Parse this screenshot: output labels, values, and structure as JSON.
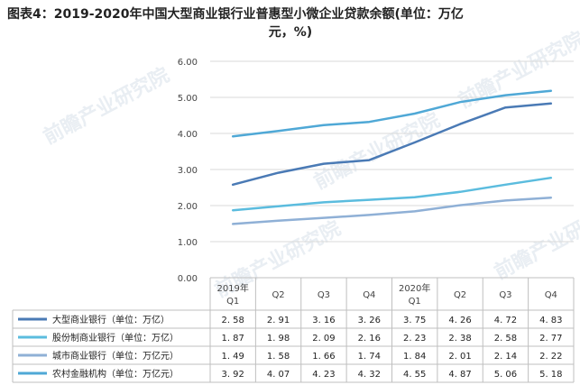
{
  "title": {
    "line1": "图表4：2019-2020年中国大型商业银行业普惠型小微企业贷款余额(单位：万亿",
    "line2": "元，%)"
  },
  "watermark": "前瞻产业研究院",
  "chart_data": {
    "type": "line",
    "title": "图表4：2019-2020年中国大型商业银行业普惠型小微企业贷款余额(单位：万亿元，%)",
    "categories": [
      [
        "2019年",
        "Q1"
      ],
      [
        "",
        "Q2"
      ],
      [
        "",
        "Q3"
      ],
      [
        "",
        "Q4"
      ],
      [
        "2020年",
        "Q1"
      ],
      [
        "",
        "Q2"
      ],
      [
        "",
        "Q3"
      ],
      [
        "",
        "Q4"
      ]
    ],
    "ylim": [
      0,
      6
    ],
    "yticks": [
      "0.00",
      "1.00",
      "2.00",
      "3.00",
      "4.00",
      "5.00",
      "6.00"
    ],
    "grid": true,
    "legend": "table-left",
    "series": [
      {
        "name": "大型商业银行（单位：万亿）",
        "color": "#4a7ab5",
        "values": [
          2.58,
          2.91,
          3.16,
          3.26,
          3.75,
          4.26,
          4.72,
          4.83
        ],
        "labels": [
          "2. 58",
          "2. 91",
          "3. 16",
          "3. 26",
          "3. 75",
          "4. 26",
          "4. 72",
          "4. 83"
        ]
      },
      {
        "name": "股份制商业银行（单位：万亿）",
        "color": "#5bbcde",
        "values": [
          1.87,
          1.98,
          2.09,
          2.16,
          2.23,
          2.38,
          2.58,
          2.77
        ],
        "labels": [
          "1. 87",
          "1. 98",
          "2. 09",
          "2. 16",
          "2. 23",
          "2. 38",
          "2. 58",
          "2. 77"
        ]
      },
      {
        "name": "城市商业银行（单位：万亿元）",
        "color": "#8fb0d6",
        "values": [
          1.49,
          1.58,
          1.66,
          1.74,
          1.84,
          2.01,
          2.14,
          2.22
        ],
        "labels": [
          "1. 49",
          "1. 58",
          "1. 66",
          "1. 74",
          "1. 84",
          "2. 01",
          "2. 14",
          "2. 22"
        ]
      },
      {
        "name": "农村金融机构（单位：万亿元）",
        "color": "#4fa8d6",
        "values": [
          3.92,
          4.07,
          4.23,
          4.32,
          4.55,
          4.87,
          5.06,
          5.18
        ],
        "labels": [
          "3. 92",
          "4. 07",
          "4. 23",
          "4. 32",
          "4. 55",
          "4. 87",
          "5. 06",
          "5. 18"
        ]
      }
    ]
  }
}
